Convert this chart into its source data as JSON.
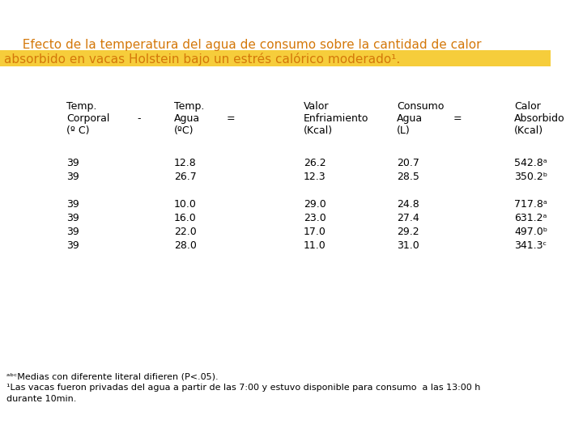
{
  "title_line1": "  Efecto de la temperatura del agua de consumo sobre la cantidad de calor",
  "title_line2": "absorbido en vacas Holstein bajo un estrés calórico moderado¹.",
  "title_color": "#D4780A",
  "highlight_color": "#F5C518",
  "bg_color": "#FFFFFF",
  "headers": [
    [
      "Temp.",
      "Corporal",
      "(º C)"
    ],
    [
      "-",
      "",
      ""
    ],
    [
      "Temp.",
      "Agua",
      "(ºC)"
    ],
    [
      "=",
      "",
      ""
    ],
    [
      "Valor",
      "Enfriamiento",
      "(Kcal)"
    ],
    [
      "Consumo",
      "Agua",
      "(L)"
    ],
    [
      "=",
      "",
      ""
    ],
    [
      "Calor",
      "Absorbido",
      "(Kcal)"
    ]
  ],
  "data_rows": [
    [
      "39",
      "12.8",
      "26.2",
      "20.7",
      "542.8ᵃ"
    ],
    [
      "39",
      "26.7",
      "12.3",
      "28.5",
      "350.2ᵇ"
    ],
    null,
    [
      "39",
      "10.0",
      "29.0",
      "24.8",
      "717.8ᵃ"
    ],
    [
      "39",
      "16.0",
      "23.0",
      "27.4",
      "631.2ᵃ"
    ],
    [
      "39",
      "22.0",
      "17.0",
      "29.2",
      "497.0ᵇ"
    ],
    [
      "39",
      "28.0",
      "11.0",
      "31.0",
      "341.3ᶜ"
    ]
  ],
  "footnote1": "ᵃᵇᶜMedias con diferente literal difieren (P<.05).",
  "footnote2": "¹Las vacas fueron privadas del agua a partir de las 7:00 y estuvo disponible para consumo  a las 13:00 h",
  "footnote3": "durante 10min.",
  "font_color": "#000000",
  "font_size": 9,
  "title_font_size": 11
}
